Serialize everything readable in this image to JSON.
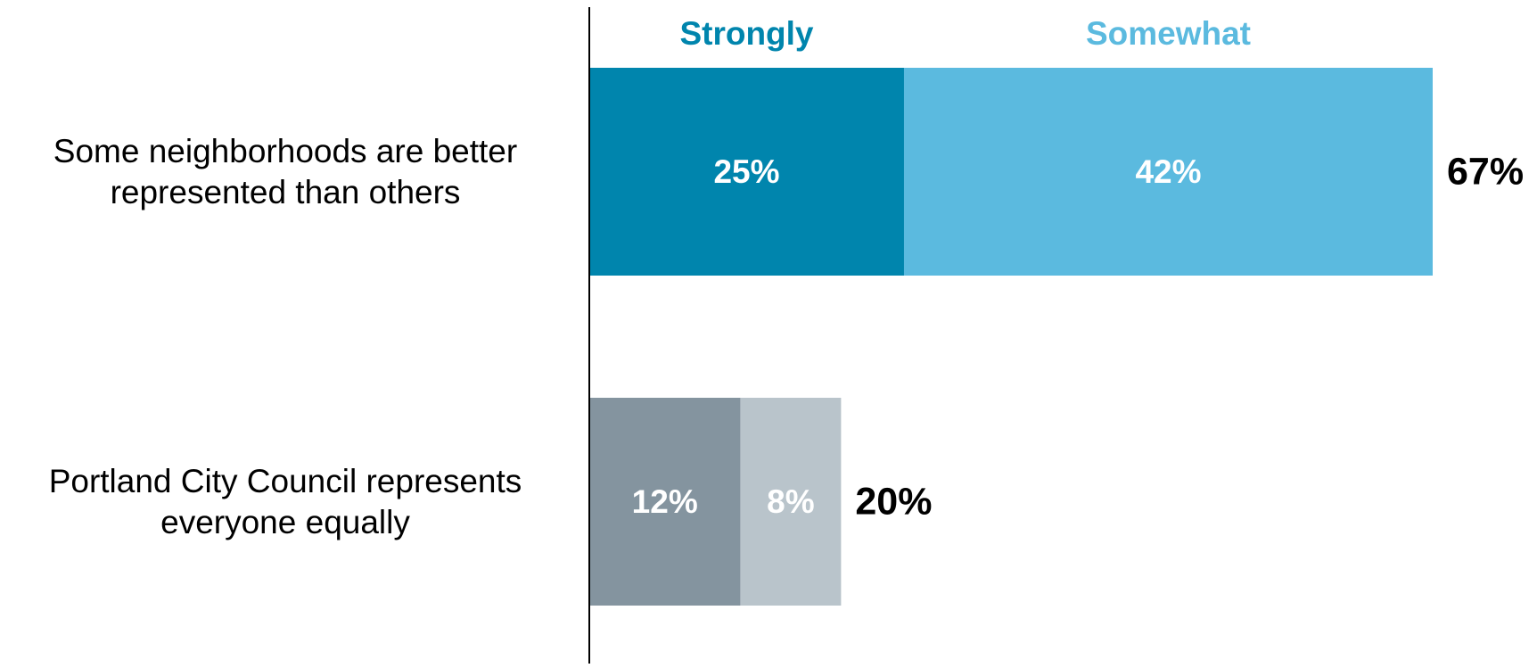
{
  "chart_data": {
    "type": "bar",
    "orientation": "horizontal",
    "stacked": true,
    "categories": [
      [
        "Some neighborhoods are better",
        "represented than others"
      ],
      [
        "Portland City Council represents",
        "everyone equally"
      ]
    ],
    "legend": {
      "strongly": "Strongly",
      "somewhat": "Somewhat"
    },
    "series": [
      {
        "name": "Strongly",
        "values": [
          25,
          12
        ],
        "labels": [
          "25%",
          "12%"
        ],
        "colors": [
          "#0085ad",
          "#84949f"
        ]
      },
      {
        "name": "Somewhat",
        "values": [
          42,
          8
        ],
        "labels": [
          "42%",
          "8%"
        ],
        "colors": [
          "#5bbadf",
          "#b9c4cb"
        ]
      }
    ],
    "totals": [
      67,
      20
    ],
    "total_labels": [
      "67%",
      "20%"
    ],
    "xlim": [
      0,
      67
    ],
    "grid": false,
    "colors": {
      "legend_strongly": "#0085ad",
      "legend_somewhat": "#5bbadf",
      "axis": "#000000",
      "inner_label": "#ffffff",
      "total_label": "#000000",
      "category_label": "#000000"
    }
  }
}
